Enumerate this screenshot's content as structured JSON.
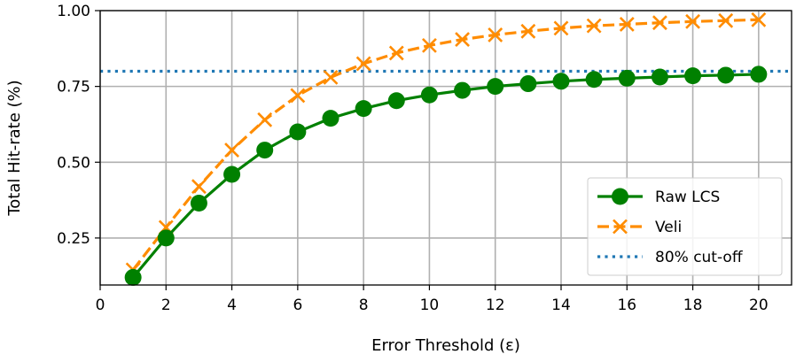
{
  "chart_data": {
    "type": "line",
    "xlabel": "Error Threshold (ε)",
    "ylabel": "Total Hit-rate (%)",
    "xlim": [
      0,
      21
    ],
    "ylim": [
      0.095,
      1.0
    ],
    "xticks": [
      0,
      2,
      4,
      6,
      8,
      10,
      12,
      14,
      16,
      18,
      20
    ],
    "yticks": [
      0.25,
      0.5,
      0.75,
      1.0
    ],
    "ytick_labels": [
      "0.25",
      "0.50",
      "0.75",
      "1.00"
    ],
    "grid": true,
    "legend_position": "lower-right",
    "x": [
      1,
      2,
      3,
      4,
      5,
      6,
      7,
      8,
      9,
      10,
      11,
      12,
      13,
      14,
      15,
      16,
      17,
      18,
      19,
      20
    ],
    "series": [
      {
        "name": "Raw LCS",
        "color": "#008000",
        "style": "solid",
        "marker": "circle",
        "values": [
          0.12,
          0.25,
          0.365,
          0.46,
          0.54,
          0.6,
          0.645,
          0.677,
          0.703,
          0.722,
          0.737,
          0.75,
          0.759,
          0.767,
          0.773,
          0.777,
          0.781,
          0.785,
          0.787,
          0.79
        ]
      },
      {
        "name": "Veli",
        "color": "#ff8c00",
        "style": "dashed",
        "marker": "x",
        "values": [
          0.145,
          0.285,
          0.42,
          0.54,
          0.64,
          0.72,
          0.78,
          0.825,
          0.86,
          0.885,
          0.905,
          0.92,
          0.932,
          0.942,
          0.95,
          0.955,
          0.96,
          0.964,
          0.967,
          0.97
        ]
      },
      {
        "name": "80% cut-off",
        "color": "#1f77b4",
        "style": "dotted",
        "marker": "none",
        "constant": 0.8
      }
    ]
  }
}
